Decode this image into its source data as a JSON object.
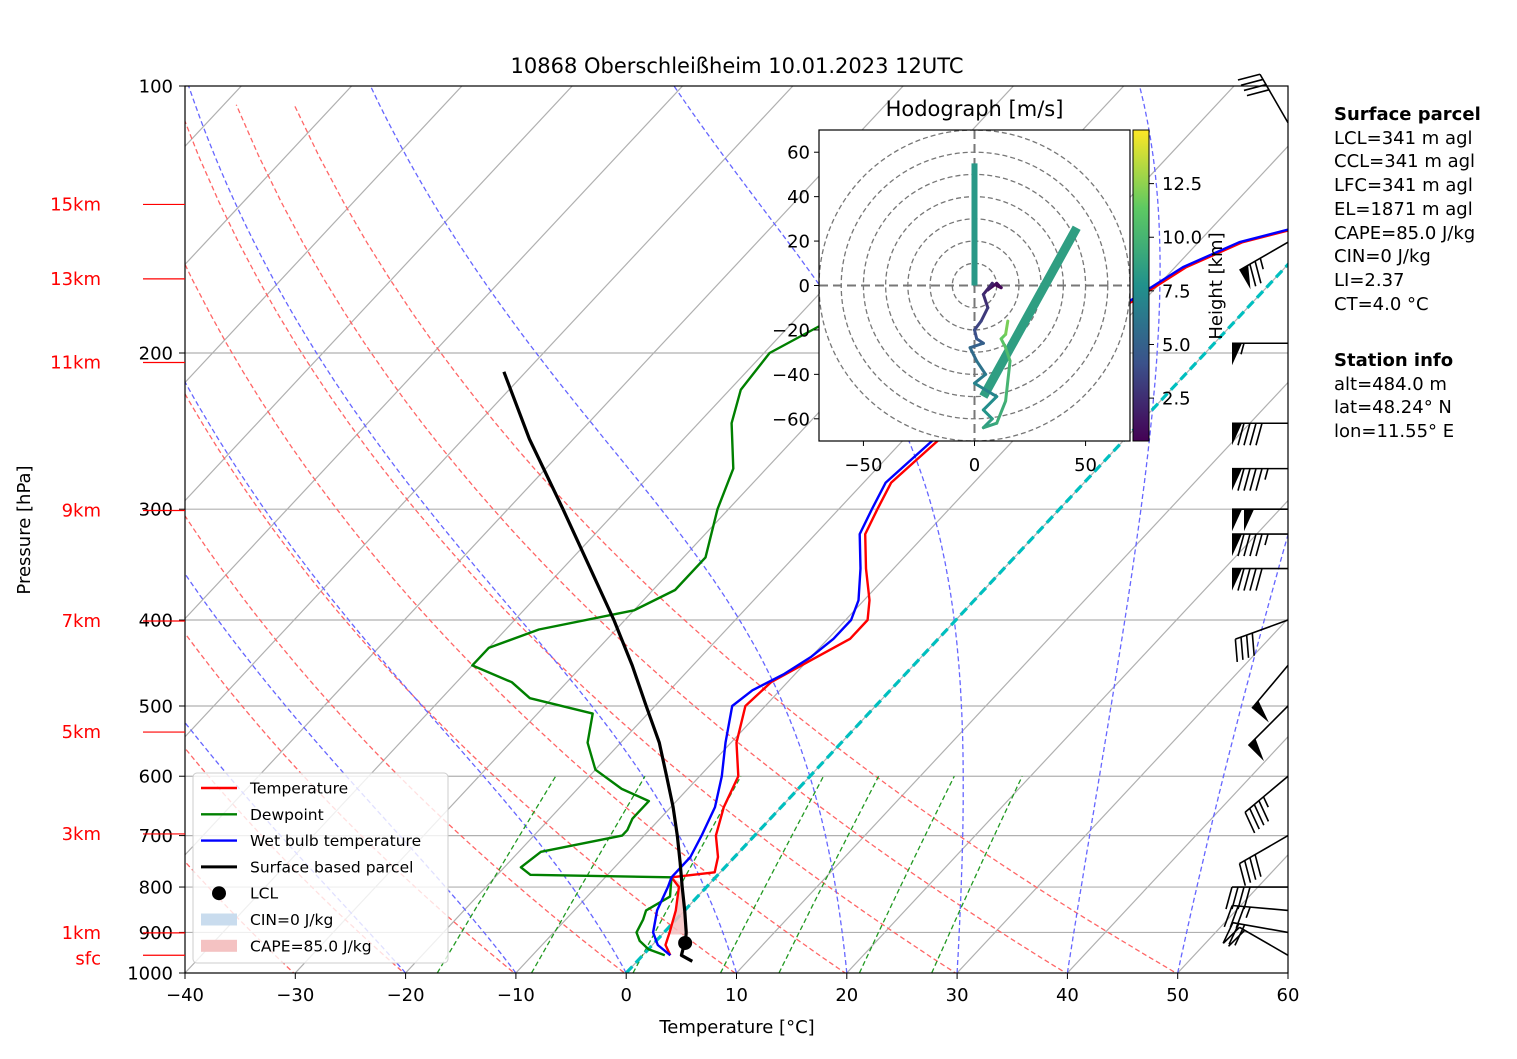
{
  "chart_data": {
    "type": "skew-t",
    "title": "10868 Oberschleißheim 10.01.2023 12UTC",
    "xlabel": "Temperature [°C]",
    "ylabel": "Pressure [hPa]",
    "xlim": [
      -40,
      60
    ],
    "ylim": [
      1000,
      100
    ],
    "x_ticks": [
      "−40",
      "−30",
      "−20",
      "−10",
      "0",
      "10",
      "20",
      "30",
      "40",
      "50",
      "60"
    ],
    "y_ticks": [
      "100",
      "200",
      "300",
      "400",
      "500",
      "600",
      "700",
      "800",
      "900",
      "1000"
    ],
    "height_labels": [
      {
        "label": "15km",
        "p": 136
      },
      {
        "label": "13km",
        "p": 165
      },
      {
        "label": "11km",
        "p": 205
      },
      {
        "label": "9km",
        "p": 301
      },
      {
        "label": "7km",
        "p": 401
      },
      {
        "label": "5km",
        "p": 535
      },
      {
        "label": "3km",
        "p": 697
      },
      {
        "label": "1km",
        "p": 901
      },
      {
        "label": "sfc",
        "p": 955
      }
    ],
    "legend": {
      "position": "lower-left",
      "entries": [
        "Temperature",
        "Dewpoint",
        "Wet bulb temperature",
        "Surface based parcel",
        "LCL",
        "CIN=0 J/kg",
        "CAPE=85.0 J/kg"
      ]
    },
    "series": [
      {
        "name": "Temperature",
        "color": "#ff0000",
        "points": [
          [
            955,
            2.5
          ],
          [
            930,
            1.2
          ],
          [
            900,
            0.5
          ],
          [
            850,
            -0.8
          ],
          [
            800,
            -2.5
          ],
          [
            780,
            -4.0
          ],
          [
            770,
            -0.5
          ],
          [
            740,
            -1.5
          ],
          [
            700,
            -3.5
          ],
          [
            650,
            -5.2
          ],
          [
            600,
            -6.5
          ],
          [
            550,
            -9.5
          ],
          [
            500,
            -11.8
          ],
          [
            470,
            -11.5
          ],
          [
            445,
            -9.8
          ],
          [
            420,
            -8.0
          ],
          [
            400,
            -8.0
          ],
          [
            380,
            -9.5
          ],
          [
            350,
            -12.5
          ],
          [
            320,
            -15.5
          ],
          [
            300,
            -16.5
          ],
          [
            280,
            -17.5
          ],
          [
            250,
            -16.8
          ],
          [
            230,
            -16.0
          ],
          [
            210,
            -15.0
          ],
          [
            200,
            -14.5
          ],
          [
            185,
            -12.5
          ],
          [
            175,
            -11.0
          ],
          [
            160,
            -9.0
          ],
          [
            150,
            -6.0
          ],
          [
            145,
            -2.5
          ],
          [
            140,
            -0.5
          ],
          [
            135,
            0.5
          ]
        ]
      },
      {
        "name": "Dewpoint",
        "color": "#008000",
        "points": [
          [
            955,
            2.0
          ],
          [
            940,
            0.0
          ],
          [
            920,
            -1.5
          ],
          [
            900,
            -2.5
          ],
          [
            870,
            -3.0
          ],
          [
            850,
            -3.5
          ],
          [
            820,
            -2.5
          ],
          [
            780,
            -4.0
          ],
          [
            775,
            -17.0
          ],
          [
            760,
            -18.5
          ],
          [
            730,
            -18.0
          ],
          [
            700,
            -12.0
          ],
          [
            690,
            -12.0
          ],
          [
            670,
            -12.5
          ],
          [
            640,
            -12.5
          ],
          [
            620,
            -16.0
          ],
          [
            590,
            -20.0
          ],
          [
            550,
            -23.0
          ],
          [
            510,
            -25.0
          ],
          [
            490,
            -32.0
          ],
          [
            470,
            -35.0
          ],
          [
            450,
            -40.0
          ],
          [
            430,
            -40.0
          ],
          [
            410,
            -37.0
          ],
          [
            390,
            -30.0
          ],
          [
            370,
            -28.0
          ],
          [
            340,
            -28.0
          ],
          [
            300,
            -31.0
          ],
          [
            270,
            -33.0
          ],
          [
            240,
            -37.0
          ],
          [
            220,
            -39.0
          ],
          [
            200,
            -39.5
          ],
          [
            185,
            -37.0
          ],
          [
            170,
            -35.0
          ],
          [
            160,
            -33.0
          ],
          [
            150,
            -30.5
          ],
          [
            143,
            -27.0
          ],
          [
            137,
            -23.5
          ],
          [
            135,
            -22.5
          ]
        ]
      },
      {
        "name": "Wet bulb temperature",
        "color": "#0000ff",
        "points": [
          [
            955,
            2.5
          ],
          [
            930,
            0.5
          ],
          [
            900,
            -1.0
          ],
          [
            850,
            -2.5
          ],
          [
            800,
            -3.5
          ],
          [
            780,
            -4.0
          ],
          [
            740,
            -4.0
          ],
          [
            700,
            -4.8
          ],
          [
            650,
            -6.0
          ],
          [
            600,
            -8.0
          ],
          [
            550,
            -10.5
          ],
          [
            500,
            -13.0
          ],
          [
            480,
            -12.5
          ],
          [
            460,
            -11.0
          ],
          [
            440,
            -10.0
          ],
          [
            420,
            -9.5
          ],
          [
            400,
            -9.5
          ],
          [
            380,
            -10.5
          ],
          [
            350,
            -13.0
          ],
          [
            320,
            -16.0
          ],
          [
            300,
            -17.0
          ],
          [
            280,
            -18.0
          ],
          [
            250,
            -17.3
          ],
          [
            230,
            -16.5
          ],
          [
            210,
            -15.3
          ],
          [
            200,
            -14.8
          ],
          [
            185,
            -12.8
          ],
          [
            175,
            -11.3
          ],
          [
            160,
            -9.3
          ],
          [
            150,
            -6.3
          ],
          [
            145,
            -2.8
          ],
          [
            140,
            -0.8
          ],
          [
            135,
            0.3
          ]
        ]
      },
      {
        "name": "Surface based parcel",
        "color": "#000000",
        "points": [
          [
            970,
            5.0
          ],
          [
            955,
            3.5
          ],
          [
            915,
            2.5
          ],
          [
            900,
            2.0
          ],
          [
            850,
            0.0
          ],
          [
            800,
            -2.2
          ],
          [
            750,
            -4.5
          ],
          [
            700,
            -7.0
          ],
          [
            650,
            -9.8
          ],
          [
            600,
            -13.0
          ],
          [
            550,
            -16.5
          ],
          [
            500,
            -20.8
          ],
          [
            450,
            -25.5
          ],
          [
            400,
            -31.0
          ],
          [
            350,
            -37.5
          ],
          [
            300,
            -45.0
          ],
          [
            250,
            -54.0
          ],
          [
            210,
            -62.0
          ]
        ]
      }
    ],
    "lcl": {
      "p": 925,
      "t": 2.8
    },
    "cape_fill": [
      [
        905,
        2.4
      ],
      [
        850,
        0.0
      ],
      [
        800,
        -2.2
      ],
      [
        790,
        -2.8
      ],
      [
        780,
        -4.0
      ],
      [
        800,
        -2.5
      ],
      [
        850,
        -0.8
      ],
      [
        900,
        0.5
      ],
      [
        905,
        0.7
      ]
    ],
    "dry_adiabats_theta_K": [
      213,
      223,
      233,
      243,
      253,
      263,
      273,
      283,
      293,
      303,
      313,
      323
    ],
    "moist_adiabats_wb_C": [
      -20,
      -10,
      0,
      10,
      20,
      30,
      40,
      50
    ],
    "mixing_ratio_lines_gkg": [
      1,
      2,
      4,
      7,
      10,
      16,
      24
    ],
    "zero_isotherm_color": "#00bfbf",
    "wind_barbs": [
      {
        "p": 955,
        "speed_kt": 20,
        "dir": 300
      },
      {
        "p": 900,
        "speed_kt": 30,
        "dir": 280
      },
      {
        "p": 850,
        "speed_kt": 35,
        "dir": 275
      },
      {
        "p": 800,
        "speed_kt": 40,
        "dir": 270
      },
      {
        "p": 700,
        "speed_kt": 40,
        "dir": 240
      },
      {
        "p": 600,
        "speed_kt": 45,
        "dir": 230
      },
      {
        "p": 500,
        "speed_kt": 50,
        "dir": 225
      },
      {
        "p": 450,
        "speed_kt": 50,
        "dir": 220
      },
      {
        "p": 400,
        "speed_kt": 40,
        "dir": 250
      },
      {
        "p": 350,
        "speed_kt": 90,
        "dir": 270
      },
      {
        "p": 320,
        "speed_kt": 95,
        "dir": 270
      },
      {
        "p": 300,
        "speed_kt": 100,
        "dir": 270
      },
      {
        "p": 270,
        "speed_kt": 95,
        "dir": 270
      },
      {
        "p": 240,
        "speed_kt": 90,
        "dir": 270
      },
      {
        "p": 195,
        "speed_kt": 55,
        "dir": 270
      },
      {
        "p": 150,
        "speed_kt": 75,
        "dir": 240
      },
      {
        "p": 110,
        "speed_kt": 40,
        "dir": 330
      }
    ],
    "hodograph": {
      "title": "Hodograph [m/s]",
      "xlim": [
        -70,
        70
      ],
      "ylim": [
        -70,
        70
      ],
      "ticks": [
        "−50",
        "0",
        "50"
      ],
      "yticks": [
        "60",
        "40",
        "20",
        "0",
        "−20",
        "−40",
        "−60"
      ],
      "rings": [
        10,
        20,
        30,
        40,
        50,
        60,
        70
      ],
      "colorbar_label": "Height [km]",
      "colorbar_ticks": [
        "2.5",
        "5.0",
        "7.5",
        "10.0",
        "12.5"
      ],
      "height_range_km": [
        0.5,
        15
      ],
      "trace": [
        [
          10,
          0,
          0.5
        ],
        [
          12,
          -1,
          0.8
        ],
        [
          10,
          1,
          1.0
        ],
        [
          6,
          -2,
          1.5
        ],
        [
          8,
          1,
          2.0
        ],
        [
          4,
          -4,
          2.5
        ],
        [
          6,
          -10,
          3.0
        ],
        [
          3,
          -16,
          3.5
        ],
        [
          0,
          -20,
          4.0
        ],
        [
          1,
          -24,
          4.5
        ],
        [
          4,
          -26,
          5.0
        ],
        [
          -2,
          -28,
          5.5
        ],
        [
          1,
          -34,
          6.0
        ],
        [
          5,
          -40,
          6.5
        ],
        [
          0,
          -44,
          7.0
        ],
        [
          10,
          -50,
          7.5
        ],
        [
          4,
          -56,
          8.0
        ],
        [
          8,
          -60,
          8.5
        ],
        [
          4,
          -64,
          9.0
        ],
        [
          10,
          -62,
          9.5
        ],
        [
          14,
          -52,
          10.0
        ],
        [
          16,
          -34,
          10.5
        ],
        [
          14,
          -28,
          11.0
        ],
        [
          12,
          -24,
          11.5
        ],
        [
          14,
          -22,
          12.0
        ],
        [
          15,
          -16,
          13.0
        ]
      ],
      "thick_lines": [
        {
          "from": [
            0,
            0
          ],
          "to": [
            0,
            55
          ],
          "h": 8.2,
          "width": 6
        },
        {
          "from": [
            4,
            -50
          ],
          "to": [
            46,
            26
          ],
          "h": 8.6,
          "width": 9
        }
      ]
    }
  },
  "surface_parcel": {
    "title": "Surface parcel",
    "lines": [
      "LCL=341 m agl",
      "CCL=341 m agl",
      "LFC=341 m agl",
      "EL=1871 m agl",
      "CAPE=85.0 J/kg",
      "CIN=0 J/kg",
      "LI=2.37",
      "CT=4.0 °C"
    ]
  },
  "station_info": {
    "title": "Station info",
    "lines": [
      "alt=484.0 m",
      "lat=48.24° N",
      "lon=11.55° E"
    ]
  }
}
